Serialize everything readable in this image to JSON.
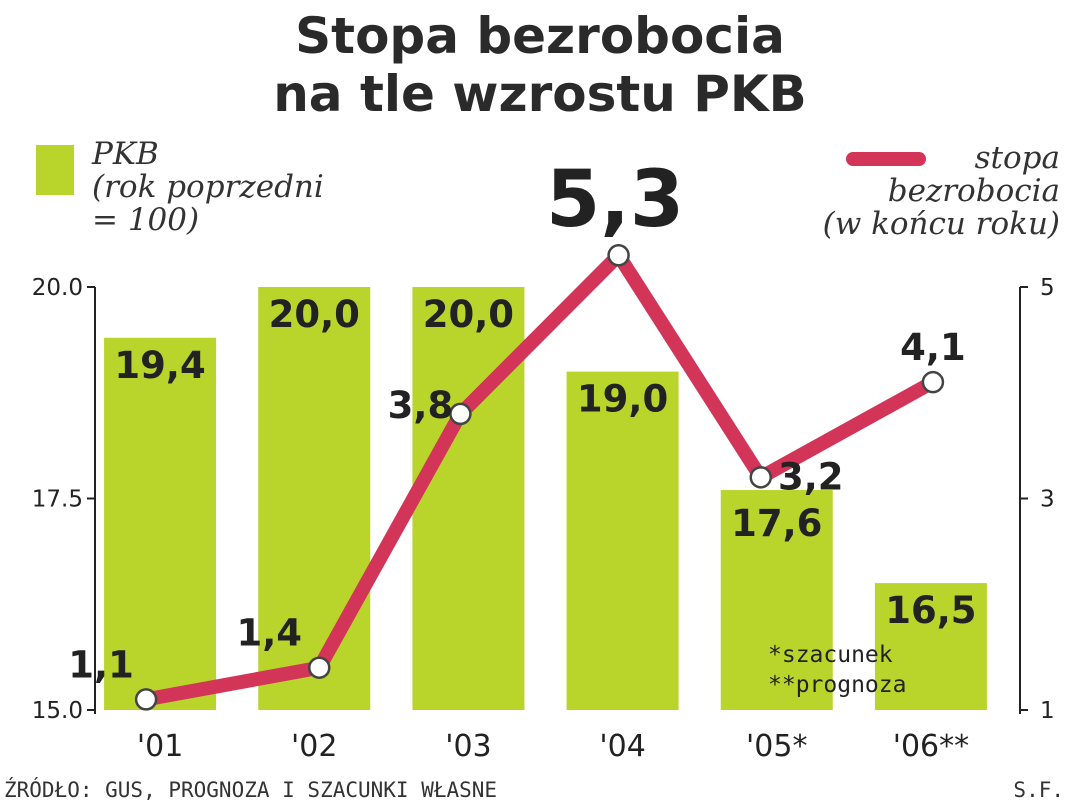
{
  "title_line1": "Stopa bezrobocia",
  "title_line2": "na tle wzrostu PKB",
  "legend": {
    "pkb": [
      "PKB",
      "(rok poprzedni",
      "= 100)"
    ],
    "stopa": [
      "stopa",
      "bezrobocia",
      "(w końcu roku)"
    ]
  },
  "notes": [
    "*szacunek",
    "**prognoza"
  ],
  "source": "ŹRÓDŁO: GUS, PROGNOZA I SZACUNKI WŁASNE",
  "author": "S.F.",
  "colors": {
    "bar": "#b9d52b",
    "line": "#d23557"
  },
  "chart_data": {
    "type": "bar",
    "categories": [
      "'01",
      "'02",
      "'03",
      "'04",
      "'05*",
      "'06**"
    ],
    "series": [
      {
        "name": "PKB (rok poprzedni = 100)",
        "type": "bar",
        "axis": "left",
        "values": [
          19.4,
          20.0,
          20.0,
          19.0,
          17.6,
          16.5
        ],
        "labels": [
          "19,4",
          "20,0",
          "20,0",
          "19,0",
          "17,6",
          "16,5"
        ]
      },
      {
        "name": "stopa bezrobocia (w końcu roku)",
        "type": "line",
        "axis": "right",
        "values": [
          1.1,
          1.4,
          3.8,
          5.3,
          3.2,
          4.1
        ],
        "labels": [
          "1,1",
          "1,4",
          "3,8",
          "5,3",
          "3,2",
          "4,1"
        ]
      }
    ],
    "y_left": {
      "ticks": [
        "20.0",
        "17.5",
        "15.0"
      ],
      "tick_values": [
        20.0,
        17.5,
        15.0
      ],
      "range": [
        15.0,
        20.0
      ]
    },
    "y_right": {
      "ticks": [
        "5",
        "3",
        "1"
      ],
      "tick_values": [
        5,
        3,
        1
      ],
      "range": [
        1,
        5
      ]
    }
  }
}
